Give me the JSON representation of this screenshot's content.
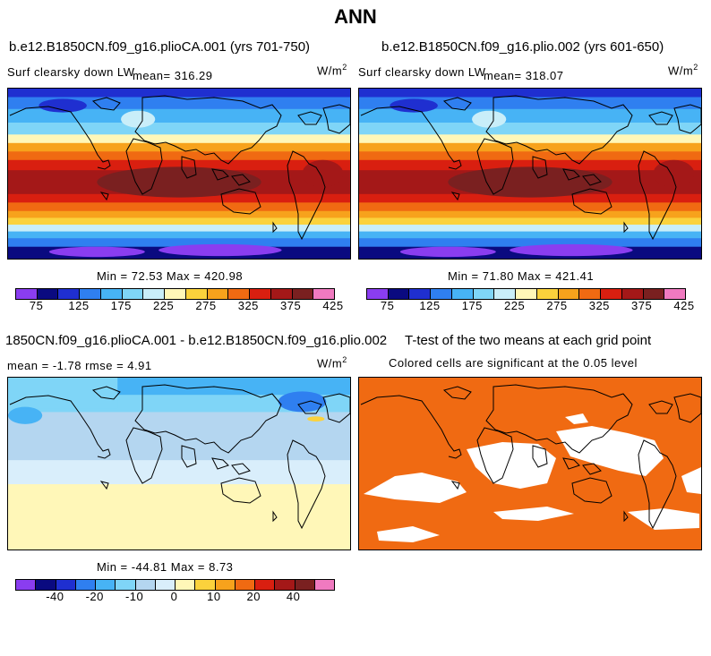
{
  "title": "ANN",
  "colors": {
    "abs_scale": [
      "#8a3df0",
      "#0a0a80",
      "#1f2fd0",
      "#2f7ff0",
      "#47b3f5",
      "#7fd5f7",
      "#c9eef9",
      "#fff7b8",
      "#fbd23c",
      "#f7a21c",
      "#f06a12",
      "#d91f10",
      "#a41818",
      "#7a2020",
      "#f07ac0"
    ],
    "diff_scale": [
      "#8a3df0",
      "#0a0a80",
      "#1f2fd0",
      "#2f7ff0",
      "#47b3f5",
      "#7fd5f7",
      "#b4d6f0",
      "#d9eefb",
      "#fff7b8",
      "#fbd23c",
      "#f7a21c",
      "#f06a12",
      "#d91f10",
      "#a41818",
      "#7a2020",
      "#f07ac0"
    ],
    "significant": "#f06a12"
  },
  "panel1": {
    "case_title": "b.e12.B1850CN.f09_g16.plioCA.001 (yrs 701-750)",
    "variable": "Surf clearsky down LW",
    "mean_label": "mean=",
    "mean_value": "316.29",
    "units": "W/m",
    "units_exp": "2",
    "minmax": "Min =  72.53 Max = 420.98",
    "ticks": [
      "75",
      "125",
      "175",
      "225",
      "275",
      "325",
      "375",
      "425"
    ]
  },
  "panel2": {
    "case_title": "b.e12.B1850CN.f09_g16.plio.002 (yrs 601-650)",
    "variable": "Surf clearsky down LW",
    "mean_label": "mean=",
    "mean_value": "318.07",
    "units": "W/m",
    "units_exp": "2",
    "minmax": "Min =  71.80 Max = 421.41",
    "ticks": [
      "75",
      "125",
      "175",
      "225",
      "275",
      "325",
      "375",
      "425"
    ]
  },
  "panel3": {
    "case_title": "1850CN.f09_g16.plioCA.001 - b.e12.B1850CN.f09_g16.plio.002",
    "stats": "mean =  -1.78     rmse =   4.91",
    "units": "W/m",
    "units_exp": "2",
    "minmax": "Min = -44.81 Max =   8.73",
    "ticks": [
      "-40",
      "-20",
      "-10",
      "0",
      "10",
      "20",
      "40"
    ]
  },
  "panel4": {
    "title": "T-test of the two means at each grid point",
    "subtitle": "Colored cells are significant at the 0.05 level"
  }
}
